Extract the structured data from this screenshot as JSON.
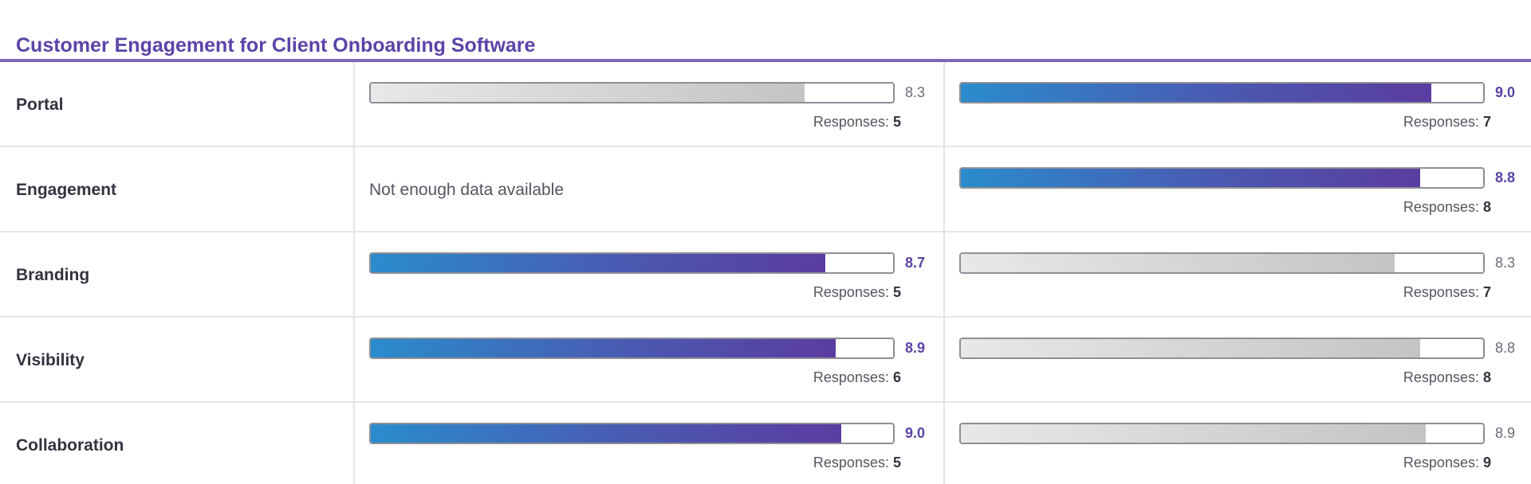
{
  "section": {
    "title": "Customer Engagement for Client Onboarding Software"
  },
  "colors": {
    "accent": "#5b43a8",
    "bar_gradient_start": "#2a8ccc",
    "bar_gradient_end": "#5b3c9f",
    "bar_gray": "#c4c4c4",
    "rule": "#7b67b8"
  },
  "responses_label": "Responses:",
  "rows": [
    {
      "label": "Portal",
      "col1": {
        "has_data": true,
        "score": "8.3",
        "score_value": 8.3,
        "highlight": false,
        "responses": "5"
      },
      "col2": {
        "has_data": true,
        "score": "9.0",
        "score_value": 9.0,
        "highlight": true,
        "responses": "7"
      }
    },
    {
      "label": "Engagement",
      "col1": {
        "has_data": false,
        "message": "Not enough data available"
      },
      "col2": {
        "has_data": true,
        "score": "8.8",
        "score_value": 8.8,
        "highlight": true,
        "responses": "8"
      }
    },
    {
      "label": "Branding",
      "col1": {
        "has_data": true,
        "score": "8.7",
        "score_value": 8.7,
        "highlight": true,
        "responses": "5"
      },
      "col2": {
        "has_data": true,
        "score": "8.3",
        "score_value": 8.3,
        "highlight": false,
        "responses": "7"
      }
    },
    {
      "label": "Visibility",
      "col1": {
        "has_data": true,
        "score": "8.9",
        "score_value": 8.9,
        "highlight": true,
        "responses": "6"
      },
      "col2": {
        "has_data": true,
        "score": "8.8",
        "score_value": 8.8,
        "highlight": false,
        "responses": "8"
      }
    },
    {
      "label": "Collaboration",
      "col1": {
        "has_data": true,
        "score": "9.0",
        "score_value": 9.0,
        "highlight": true,
        "responses": "5"
      },
      "col2": {
        "has_data": true,
        "score": "8.9",
        "score_value": 8.9,
        "highlight": false,
        "responses": "9"
      }
    }
  ]
}
